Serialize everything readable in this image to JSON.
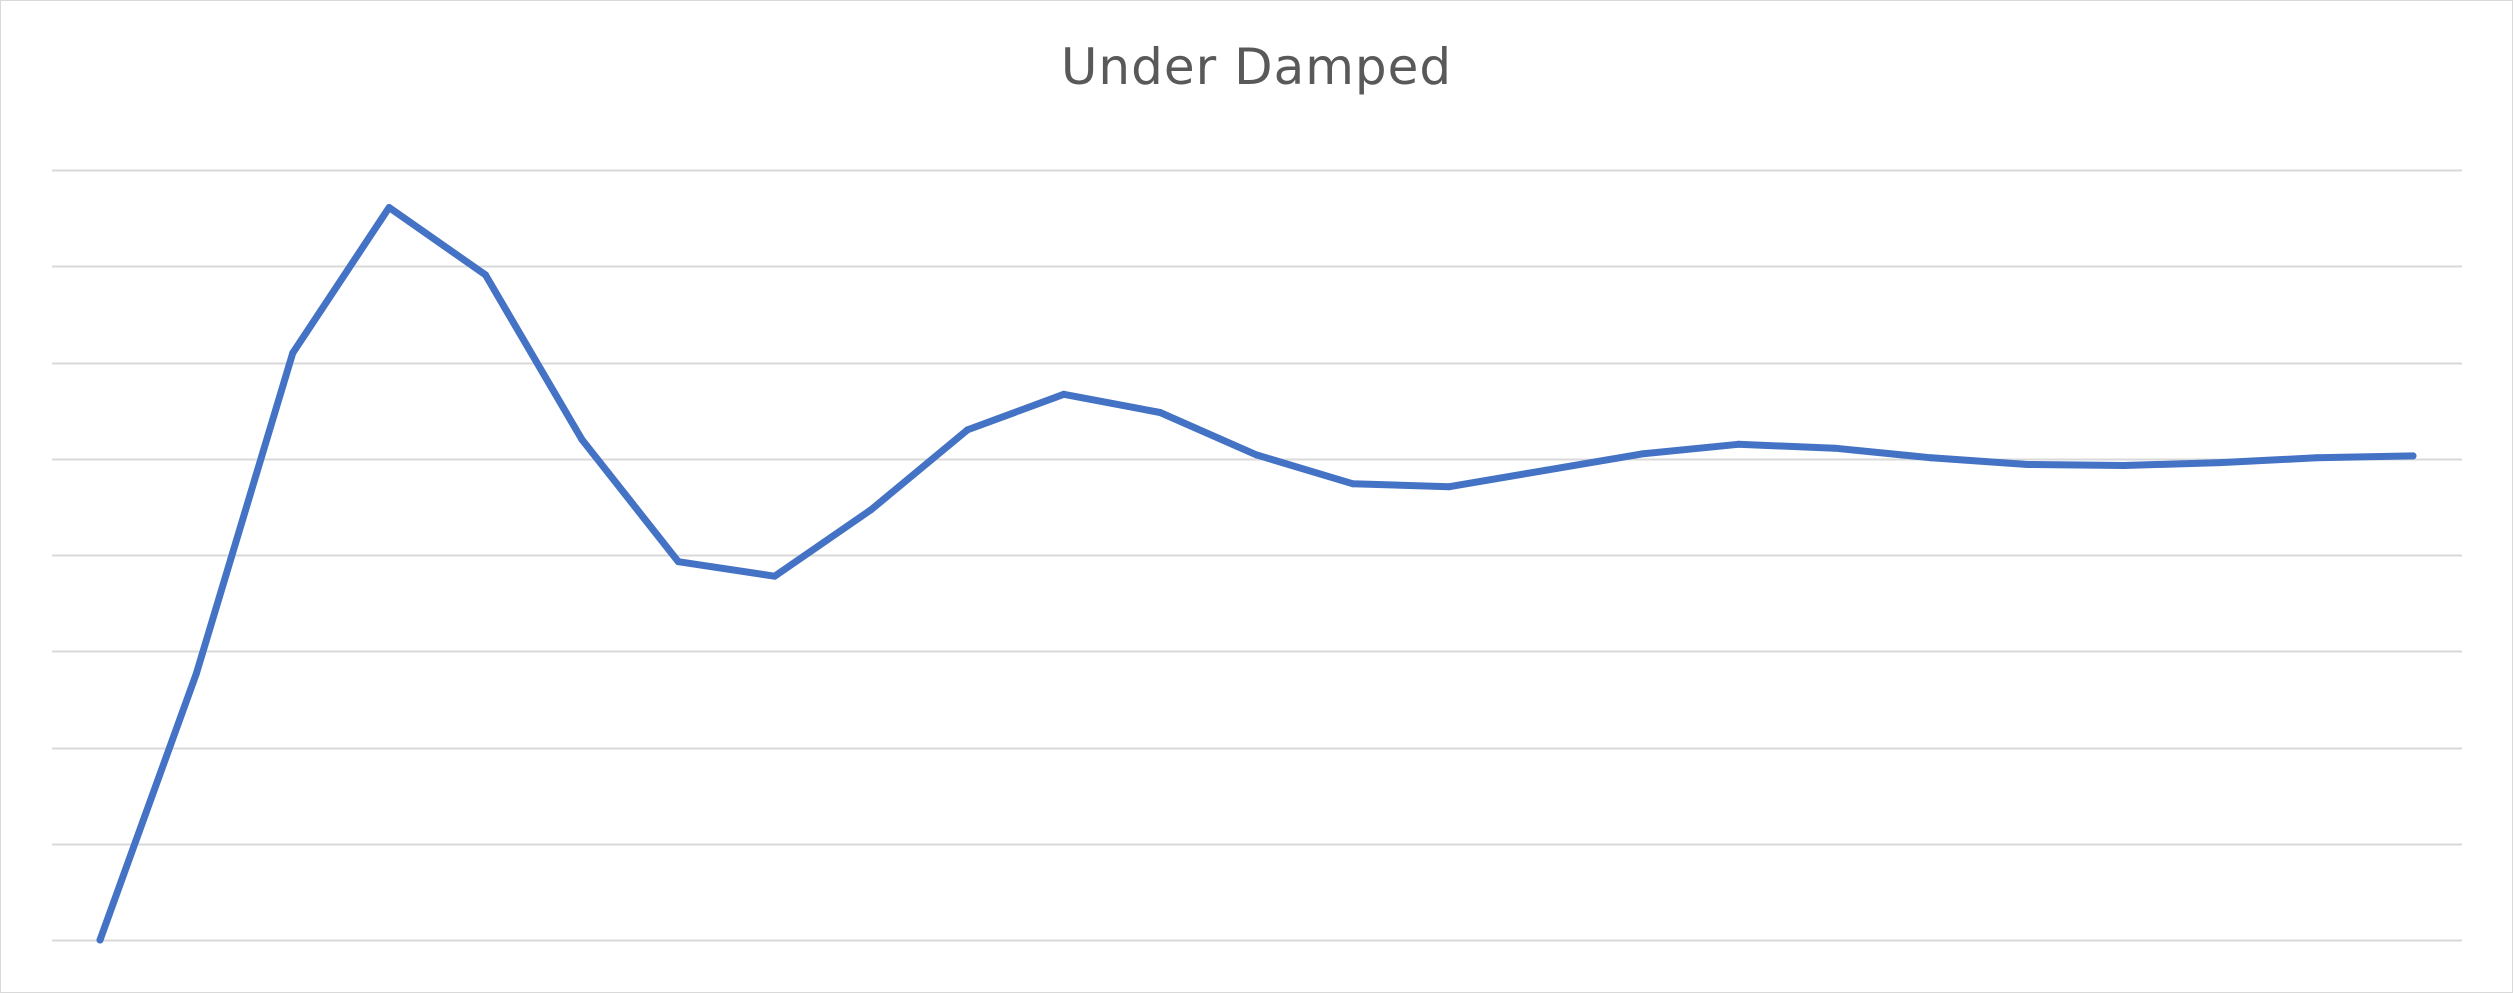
{
  "chart_data": {
    "type": "line",
    "title": "Under Damped",
    "xlabel": "",
    "ylabel": "",
    "grid": true,
    "legend": "none",
    "x_axis_labels": false,
    "y_axis_labels": false,
    "x": [
      0,
      1,
      2,
      3,
      4,
      5,
      6,
      7,
      8,
      9,
      10,
      11,
      12,
      13,
      14,
      15,
      16,
      17,
      18,
      19,
      20,
      21,
      22,
      23,
      24
    ],
    "ylim": [
      0,
      8
    ],
    "gridline_count": 9,
    "series": [
      {
        "color": "#4472C4",
        "values": [
          0,
          2.77,
          6.1,
          7.61,
          6.91,
          5.2,
          3.93,
          3.78,
          4.47,
          5.3,
          5.67,
          5.48,
          5.04,
          4.74,
          4.71,
          4.88,
          5.05,
          5.15,
          5.11,
          5.01,
          4.94,
          4.93,
          4.96,
          5.01,
          5.03
        ]
      }
    ]
  }
}
